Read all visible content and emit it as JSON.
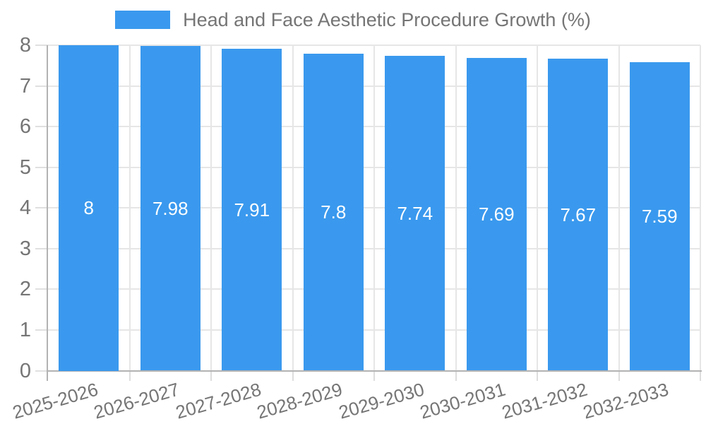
{
  "chart_data": {
    "type": "bar",
    "title": "Head and Face Aesthetic Procedure Growth (%)",
    "categories": [
      "2025-2026",
      "2026-2027",
      "2027-2028",
      "2028-2029",
      "2029-2030",
      "2030-2031",
      "2031-2032",
      "2032-2033"
    ],
    "values": [
      8,
      7.98,
      7.91,
      7.8,
      7.74,
      7.69,
      7.67,
      7.59
    ],
    "value_labels": [
      "8",
      "7.98",
      "7.91",
      "7.8",
      "7.74",
      "7.69",
      "7.67",
      "7.59"
    ],
    "xlabel": "",
    "ylabel": "",
    "ylim": [
      0,
      8
    ],
    "yticks": [
      0,
      1,
      2,
      3,
      4,
      5,
      6,
      7,
      8
    ],
    "grid": true,
    "legend_position": "top",
    "bar_color": "#3a99ee",
    "label_color": "#ffffff",
    "axis_text_color": "#757575",
    "gridline_color": "#e6e6e6",
    "axis_line_color": "#b3b3b3"
  }
}
